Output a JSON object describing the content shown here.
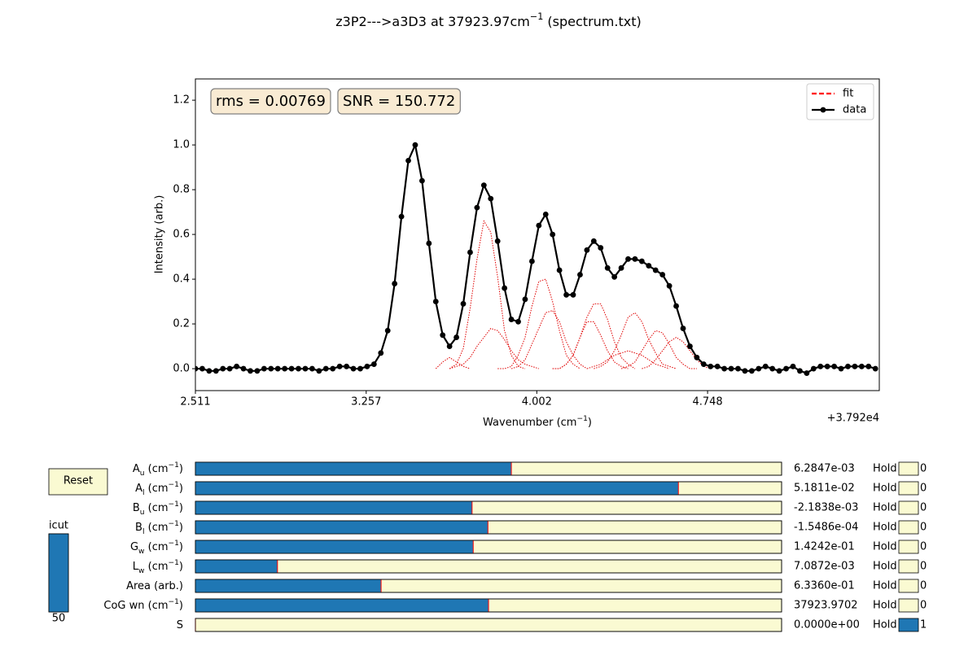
{
  "chart_data": {
    "type": "line",
    "title": [
      {
        "text": "z3P2--->a3D3 at 37923.97cm"
      },
      {
        "text": "−1",
        "shift": "super"
      },
      {
        "text": " (spectrum.txt)"
      }
    ],
    "xlabel": [
      {
        "text": "Wavenumber (cm"
      },
      {
        "text": "−1",
        "shift": "super"
      },
      {
        "text": ")"
      }
    ],
    "ylabel": "Intensity (arb.)",
    "x_offset_label": "+3.792e4",
    "annotations": [
      "rms = 0.00769",
      "SNR = 150.772"
    ],
    "xlim": [
      2.511,
      5.498
    ],
    "xticks": [
      2.511,
      3.257,
      4.002,
      4.748
    ],
    "ylim": [
      -0.098,
      1.295
    ],
    "yticks": [
      {
        "value": 0,
        "label": "0.0"
      },
      0.2,
      0.4,
      0.6,
      0.8,
      {
        "value": 1,
        "label": "1.0"
      },
      1.2
    ],
    "grid": false,
    "legend": "upper right",
    "x": [
      2.511,
      2.541,
      2.571,
      2.601,
      2.631,
      2.661,
      2.691,
      2.721,
      2.751,
      2.781,
      2.811,
      2.841,
      2.871,
      2.901,
      2.931,
      2.961,
      2.991,
      3.021,
      3.051,
      3.081,
      3.111,
      3.141,
      3.171,
      3.201,
      3.231,
      3.261,
      3.291,
      3.321,
      3.351,
      3.381,
      3.411,
      3.441,
      3.471,
      3.501,
      3.531,
      3.561,
      3.591,
      3.621,
      3.651,
      3.681,
      3.711,
      3.741,
      3.771,
      3.801,
      3.831,
      3.861,
      3.891,
      3.921,
      3.951,
      3.981,
      4.011,
      4.041,
      4.071,
      4.101,
      4.131,
      4.161,
      4.191,
      4.221,
      4.251,
      4.281,
      4.311,
      4.341,
      4.371,
      4.401,
      4.431,
      4.461,
      4.491,
      4.521,
      4.551,
      4.581,
      4.611,
      4.641,
      4.671,
      4.701,
      4.731,
      4.761,
      4.791,
      4.821,
      4.851,
      4.881,
      4.911,
      4.941,
      4.971,
      5.001,
      5.031,
      5.061,
      5.091,
      5.121,
      5.151,
      5.181,
      5.211,
      5.241,
      5.271,
      5.301,
      5.331,
      5.361,
      5.391,
      5.421,
      5.451,
      5.481
    ],
    "series": [
      {
        "name": "fit",
        "color": "#ff0000",
        "style": "dashed",
        "values": [
          0.0,
          0.0,
          -0.01,
          -0.01,
          0.0,
          0.0,
          0.01,
          0.0,
          -0.01,
          -0.01,
          0.0,
          0.0,
          0.0,
          0.0,
          0.0,
          0.0,
          0.0,
          0.0,
          -0.01,
          0.0,
          0.0,
          0.01,
          0.01,
          0.0,
          0.0,
          0.01,
          0.02,
          0.07,
          0.17,
          0.38,
          0.68,
          0.93,
          1.0,
          0.84,
          0.56,
          0.3,
          0.15,
          0.1,
          0.14,
          0.29,
          0.52,
          0.72,
          0.82,
          0.76,
          0.57,
          0.36,
          0.22,
          0.21,
          0.31,
          0.48,
          0.64,
          0.69,
          0.6,
          0.44,
          0.33,
          0.33,
          0.42,
          0.53,
          0.57,
          0.54,
          0.45,
          0.41,
          0.45,
          0.49,
          0.49,
          0.48,
          0.46,
          0.44,
          0.42,
          0.37,
          0.28,
          0.18,
          0.1,
          0.05,
          0.02,
          0.01,
          0.01,
          0.0,
          0.0,
          0.0,
          -0.01,
          -0.01,
          0.0,
          0.01,
          0.0,
          -0.01,
          0.0,
          0.01,
          -0.01,
          -0.02,
          0.0,
          0.01,
          0.01,
          0.01,
          0.0,
          0.01,
          0.01,
          0.01,
          0.01,
          0.0
        ]
      },
      {
        "name": "data",
        "color": "#000000",
        "style": "solid",
        "marker": "o",
        "values": [
          0.0,
          0.0,
          -0.01,
          -0.01,
          0.0,
          0.0,
          0.01,
          0.0,
          -0.01,
          -0.01,
          0.0,
          0.0,
          0.0,
          0.0,
          0.0,
          0.0,
          0.0,
          0.0,
          -0.01,
          0.0,
          0.0,
          0.01,
          0.01,
          0.0,
          0.0,
          0.01,
          0.02,
          0.07,
          0.17,
          0.38,
          0.68,
          0.93,
          1.0,
          0.84,
          0.56,
          0.3,
          0.15,
          0.1,
          0.14,
          0.29,
          0.52,
          0.72,
          0.82,
          0.76,
          0.57,
          0.36,
          0.22,
          0.21,
          0.31,
          0.48,
          0.64,
          0.69,
          0.6,
          0.44,
          0.33,
          0.33,
          0.42,
          0.53,
          0.57,
          0.54,
          0.45,
          0.41,
          0.45,
          0.49,
          0.49,
          0.48,
          0.46,
          0.44,
          0.42,
          0.37,
          0.28,
          0.18,
          0.1,
          0.05,
          0.02,
          0.01,
          0.01,
          0.0,
          0.0,
          0.0,
          -0.01,
          -0.01,
          0.0,
          0.01,
          0.0,
          -0.01,
          0.0,
          0.01,
          -0.01,
          -0.02,
          0.0,
          0.01,
          0.01,
          0.01,
          0.0,
          0.01,
          0.01,
          0.01,
          0.01,
          0.0
        ]
      }
    ],
    "components": {
      "color": "#e00000",
      "curves": [
        {
          "x": [
            3.561,
            3.591,
            3.621,
            3.651,
            3.681,
            3.711
          ],
          "values": [
            0,
            0.03,
            0.05,
            0.03,
            0.01,
            0
          ]
        },
        {
          "x": [
            3.621,
            3.651,
            3.681,
            3.711,
            3.741,
            3.771,
            3.801,
            3.831,
            3.861,
            3.891,
            3.921,
            3.951
          ],
          "values": [
            0,
            0.02,
            0.09,
            0.27,
            0.49,
            0.66,
            0.61,
            0.41,
            0.17,
            0.06,
            0.01,
            0
          ]
        },
        {
          "x": [
            3.621,
            3.651,
            3.681,
            3.711,
            3.741,
            3.771,
            3.801,
            3.831,
            3.861,
            3.891,
            3.921,
            3.951,
            3.981,
            4.011
          ],
          "values": [
            0,
            0.01,
            0.02,
            0.05,
            0.1,
            0.14,
            0.18,
            0.17,
            0.13,
            0.08,
            0.04,
            0.02,
            0.01,
            0
          ]
        },
        {
          "x": [
            3.831,
            3.861,
            3.891,
            3.921,
            3.951,
            3.981,
            4.011,
            4.041,
            4.071,
            4.101,
            4.131,
            4.161,
            4.191
          ],
          "values": [
            0,
            0,
            0.01,
            0.06,
            0.14,
            0.28,
            0.39,
            0.4,
            0.3,
            0.17,
            0.06,
            0.02,
            0
          ]
        },
        {
          "x": [
            3.891,
            3.921,
            3.951,
            3.981,
            4.011,
            4.041,
            4.071,
            4.101,
            4.131,
            4.161,
            4.191,
            4.221
          ],
          "values": [
            0,
            0.01,
            0.04,
            0.11,
            0.18,
            0.25,
            0.26,
            0.21,
            0.12,
            0.06,
            0.02,
            0
          ]
        },
        {
          "x": [
            4.071,
            4.101,
            4.131,
            4.161,
            4.191,
            4.221,
            4.251,
            4.281,
            4.311,
            4.341,
            4.371,
            4.401,
            4.431
          ],
          "values": [
            0,
            0,
            0.02,
            0.06,
            0.14,
            0.23,
            0.29,
            0.29,
            0.22,
            0.12,
            0.05,
            0.02,
            0
          ]
        },
        {
          "x": [
            4.071,
            4.101,
            4.131,
            4.161,
            4.191,
            4.221,
            4.251,
            4.281,
            4.311,
            4.341,
            4.371,
            4.401
          ],
          "values": [
            0,
            0,
            0.02,
            0.06,
            0.14,
            0.21,
            0.21,
            0.15,
            0.08,
            0.03,
            0.01,
            0
          ]
        },
        {
          "x": [
            4.221,
            4.251,
            4.281,
            4.311,
            4.341,
            4.371,
            4.401,
            4.431,
            4.461,
            4.491,
            4.521,
            4.551,
            4.581
          ],
          "values": [
            0,
            0.01,
            0.02,
            0.04,
            0.06,
            0.07,
            0.08,
            0.07,
            0.06,
            0.04,
            0.02,
            0.01,
            0
          ]
        },
        {
          "x": [
            4.251,
            4.281,
            4.311,
            4.341,
            4.371,
            4.401,
            4.431,
            4.461,
            4.491,
            4.521,
            4.551,
            4.581,
            4.611
          ],
          "values": [
            0,
            0.01,
            0.03,
            0.08,
            0.15,
            0.23,
            0.25,
            0.21,
            0.13,
            0.07,
            0.02,
            0.01,
            0
          ]
        },
        {
          "x": [
            4.371,
            4.401,
            4.431,
            4.461,
            4.491,
            4.521,
            4.551,
            4.581,
            4.611,
            4.641,
            4.671,
            4.701
          ],
          "values": [
            0,
            0.01,
            0.03,
            0.08,
            0.13,
            0.17,
            0.16,
            0.11,
            0.05,
            0.02,
            0,
            0
          ]
        },
        {
          "x": [
            4.461,
            4.491,
            4.521,
            4.551,
            4.581,
            4.611,
            4.641,
            4.671,
            4.701,
            4.731,
            4.761
          ],
          "values": [
            0,
            0.01,
            0.04,
            0.08,
            0.12,
            0.14,
            0.12,
            0.08,
            0.04,
            0.01,
            0
          ]
        }
      ]
    }
  },
  "controls": {
    "reset": "Reset",
    "hold_label": "Hold",
    "icut": {
      "label": "icut",
      "value": 50,
      "valmin": 0,
      "valmax": 50
    },
    "sliders": [
      {
        "label": [
          {
            "text": "A"
          },
          {
            "text": "u",
            "shift": "sub"
          },
          {
            "text": " (cm"
          },
          {
            "text": "−1",
            "shift": "super"
          },
          {
            "text": ")"
          }
        ],
        "value": 0.0062847,
        "value_label": "6.2847e-03",
        "valmin": 0,
        "valmax": 0.01166,
        "hold": 0
      },
      {
        "label": [
          {
            "text": "A"
          },
          {
            "text": "l",
            "shift": "sub"
          },
          {
            "text": " (cm"
          },
          {
            "text": "−1",
            "shift": "super"
          },
          {
            "text": ")"
          }
        ],
        "value": 0.051811,
        "value_label": "5.1811e-02",
        "valmin": 0,
        "valmax": 0.06288,
        "hold": 0
      },
      {
        "label": [
          {
            "text": "B"
          },
          {
            "text": "u",
            "shift": "sub"
          },
          {
            "text": " (cm"
          },
          {
            "text": "−1",
            "shift": "super"
          },
          {
            "text": ")"
          }
        ],
        "value": -0.0021838,
        "value_label": "-2.1838e-03",
        "valmin": -0.039,
        "valmax": 0.039,
        "hold": 0
      },
      {
        "label": [
          {
            "text": "B"
          },
          {
            "text": "l",
            "shift": "sub"
          },
          {
            "text": " (cm"
          },
          {
            "text": "−1",
            "shift": "super"
          },
          {
            "text": ")"
          }
        ],
        "value": -0.00015486,
        "value_label": "-1.5486e-04",
        "valmin": -0.0774,
        "valmax": 0.0774,
        "hold": 0
      },
      {
        "label": [
          {
            "text": "G"
          },
          {
            "text": "w",
            "shift": "sub"
          },
          {
            "text": " (cm"
          },
          {
            "text": "−1",
            "shift": "super"
          },
          {
            "text": ")"
          }
        ],
        "value": 0.14242,
        "value_label": "1.4242e-01",
        "valmin": 0,
        "valmax": 0.3005,
        "hold": 0
      },
      {
        "label": [
          {
            "text": "L"
          },
          {
            "text": "w",
            "shift": "sub"
          },
          {
            "text": " (cm"
          },
          {
            "text": "−1",
            "shift": "super"
          },
          {
            "text": ")"
          }
        ],
        "value": 0.0070872,
        "value_label": "7.0872e-03",
        "valmin": 0,
        "valmax": 0.05062,
        "hold": 0
      },
      {
        "label": [
          {
            "text": "Area (arb.)"
          }
        ],
        "value": 0.6336,
        "value_label": "6.3360e-01",
        "valmin": 0,
        "valmax": 2,
        "hold": 0
      },
      {
        "label": [
          {
            "text": "CoG wn (cm"
          },
          {
            "text": "−1",
            "shift": "super"
          },
          {
            "text": ")"
          }
        ],
        "value": 37923.9702,
        "valmin": 37922.511,
        "valmax": 37925.429,
        "hold": 0
      },
      {
        "label": [
          {
            "text": "S"
          }
        ],
        "value": 0,
        "value_label": "0.0000e+00",
        "valmin": 0,
        "valmax": 1,
        "hold": 1
      }
    ]
  }
}
